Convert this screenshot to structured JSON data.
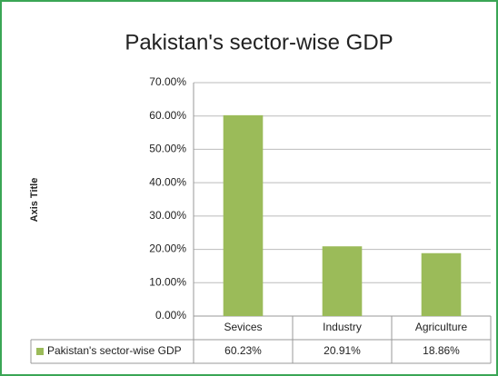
{
  "chart_data": {
    "type": "bar",
    "title": "Pakistan's sector-wise GDP",
    "y_label": "Axis Title",
    "categories": [
      "Sevices",
      "Industry",
      "Agriculture"
    ],
    "series": [
      {
        "name": "Pakistan's sector-wise GDP",
        "color": "#9bbb59",
        "values": [
          60.23,
          20.91,
          18.86
        ],
        "value_labels": [
          "60.23%",
          "20.91%",
          "18.86%"
        ]
      }
    ],
    "ylim": [
      0,
      70
    ],
    "yticks": [
      {
        "value": 0,
        "label": "0.00%"
      },
      {
        "value": 10,
        "label": "10.00%"
      },
      {
        "value": 20,
        "label": "20.00%"
      },
      {
        "value": 30,
        "label": "30.00%"
      },
      {
        "value": 40,
        "label": "40.00%"
      },
      {
        "value": 50,
        "label": "50.00%"
      },
      {
        "value": 60,
        "label": "60.00%"
      },
      {
        "value": 70,
        "label": "70.00%"
      }
    ],
    "grid": true
  }
}
